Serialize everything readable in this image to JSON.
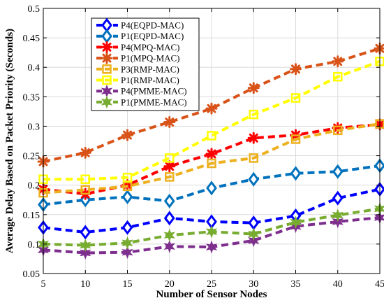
{
  "chart_data": {
    "type": "line",
    "title": "",
    "xlabel": "Number of Sensor Nodes",
    "ylabel": "Average Delay Based on Packet Priority (Seconds)",
    "x": [
      5,
      10,
      15,
      20,
      25,
      30,
      35,
      40,
      45
    ],
    "xlim": [
      5,
      45
    ],
    "ylim": [
      0.05,
      0.5
    ],
    "xticks": [
      "5",
      "10",
      "15",
      "20",
      "25",
      "30",
      "35",
      "40",
      "45"
    ],
    "yticks": [
      "0.05",
      "0.1",
      "0.15",
      "0.2",
      "0.25",
      "0.3",
      "0.35",
      "0.4",
      "0.45",
      "0.5"
    ],
    "grid": true,
    "legend_position": "top-left",
    "series": [
      {
        "name": "P4(EQPD-MAC)",
        "color": "#0000ff",
        "marker": "diamond",
        "values": [
          0.128,
          0.12,
          0.128,
          0.144,
          0.138,
          0.136,
          0.148,
          0.178,
          0.193
        ]
      },
      {
        "name": "P1(EQPD-MAC)",
        "color": "#0072bd",
        "marker": "diamond",
        "values": [
          0.167,
          0.175,
          0.18,
          0.173,
          0.195,
          0.21,
          0.22,
          0.223,
          0.233
        ]
      },
      {
        "name": "P4(MPQ-MAC)",
        "color": "#ff0000",
        "marker": "asterisk",
        "values": [
          0.193,
          0.185,
          0.2,
          0.232,
          0.253,
          0.28,
          0.285,
          0.297,
          0.303
        ]
      },
      {
        "name": "P1(MPQ-MAC)",
        "color": "#d95319",
        "marker": "asterisk",
        "values": [
          0.24,
          0.255,
          0.285,
          0.307,
          0.33,
          0.365,
          0.397,
          0.41,
          0.432
        ]
      },
      {
        "name": "P3(RMP-MAC)",
        "color": "#edb120",
        "marker": "square",
        "values": [
          0.187,
          0.192,
          0.198,
          0.214,
          0.237,
          0.246,
          0.278,
          0.293,
          0.304
        ]
      },
      {
        "name": "P1(RMP-MAC)",
        "color": "#ffff00",
        "marker": "square",
        "values": [
          0.21,
          0.21,
          0.213,
          0.246,
          0.284,
          0.32,
          0.348,
          0.384,
          0.41
        ]
      },
      {
        "name": "P4(PMME-MAC)",
        "color": "#7e2f8e",
        "marker": "star",
        "values": [
          0.09,
          0.085,
          0.086,
          0.096,
          0.095,
          0.106,
          0.13,
          0.138,
          0.145
        ]
      },
      {
        "name": "P1(PMME-MAC)",
        "color": "#77ac30",
        "marker": "star",
        "values": [
          0.1,
          0.098,
          0.102,
          0.115,
          0.121,
          0.117,
          0.137,
          0.149,
          0.16
        ]
      }
    ]
  }
}
